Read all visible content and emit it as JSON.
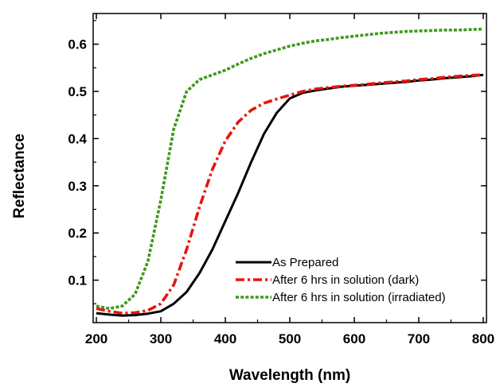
{
  "chart_data": {
    "type": "line",
    "xlabel": "Wavelength (nm)",
    "ylabel": "Reflectance",
    "xlim": [
      195,
      805
    ],
    "ylim": [
      0.01,
      0.665
    ],
    "x_ticks": [
      200,
      300,
      400,
      500,
      600,
      700,
      800
    ],
    "y_ticks": [
      0.1,
      0.2,
      0.3,
      0.4,
      0.5,
      0.6
    ],
    "x_tick_labels": [
      "200",
      "300",
      "400",
      "500",
      "600",
      "700",
      "800"
    ],
    "y_tick_labels": [
      "0.1",
      "0.2",
      "0.3",
      "0.4",
      "0.5",
      "0.6"
    ],
    "grid": false,
    "legend_position": "bottom-right",
    "series": [
      {
        "name": "As Prepared",
        "color": "#000000",
        "style": "solid",
        "x": [
          200,
          220,
          240,
          260,
          280,
          300,
          320,
          340,
          360,
          380,
          400,
          420,
          440,
          460,
          480,
          500,
          520,
          540,
          560,
          580,
          600,
          620,
          640,
          660,
          680,
          700,
          720,
          740,
          760,
          780,
          800
        ],
        "y": [
          0.03,
          0.027,
          0.025,
          0.026,
          0.029,
          0.034,
          0.05,
          0.075,
          0.115,
          0.165,
          0.225,
          0.285,
          0.35,
          0.41,
          0.455,
          0.485,
          0.497,
          0.502,
          0.506,
          0.51,
          0.512,
          0.514,
          0.516,
          0.518,
          0.52,
          0.523,
          0.525,
          0.528,
          0.53,
          0.532,
          0.535
        ]
      },
      {
        "name": "After 6 hrs in solution (dark)",
        "color": "#e8140c",
        "style": "dash-dot",
        "x": [
          200,
          220,
          240,
          260,
          280,
          300,
          320,
          340,
          360,
          380,
          400,
          420,
          440,
          460,
          480,
          500,
          520,
          540,
          560,
          580,
          600,
          620,
          640,
          660,
          680,
          700,
          720,
          740,
          760,
          780,
          800
        ],
        "y": [
          0.04,
          0.034,
          0.03,
          0.031,
          0.036,
          0.05,
          0.09,
          0.165,
          0.255,
          0.335,
          0.395,
          0.435,
          0.46,
          0.475,
          0.484,
          0.492,
          0.5,
          0.505,
          0.508,
          0.511,
          0.513,
          0.515,
          0.518,
          0.52,
          0.522,
          0.525,
          0.527,
          0.53,
          0.532,
          0.534,
          0.535
        ]
      },
      {
        "name": "After 6 hrs in solution (irradiated)",
        "color": "#3e9a1e",
        "style": "dotted",
        "x": [
          200,
          220,
          240,
          260,
          280,
          300,
          320,
          340,
          360,
          380,
          400,
          420,
          440,
          460,
          480,
          500,
          520,
          540,
          560,
          580,
          600,
          620,
          640,
          660,
          680,
          700,
          720,
          740,
          760,
          780,
          800
        ],
        "y": [
          0.045,
          0.04,
          0.045,
          0.07,
          0.14,
          0.27,
          0.42,
          0.5,
          0.525,
          0.535,
          0.545,
          0.558,
          0.57,
          0.58,
          0.588,
          0.596,
          0.602,
          0.607,
          0.61,
          0.614,
          0.617,
          0.62,
          0.623,
          0.625,
          0.627,
          0.628,
          0.629,
          0.63,
          0.63,
          0.631,
          0.632
        ]
      }
    ]
  }
}
